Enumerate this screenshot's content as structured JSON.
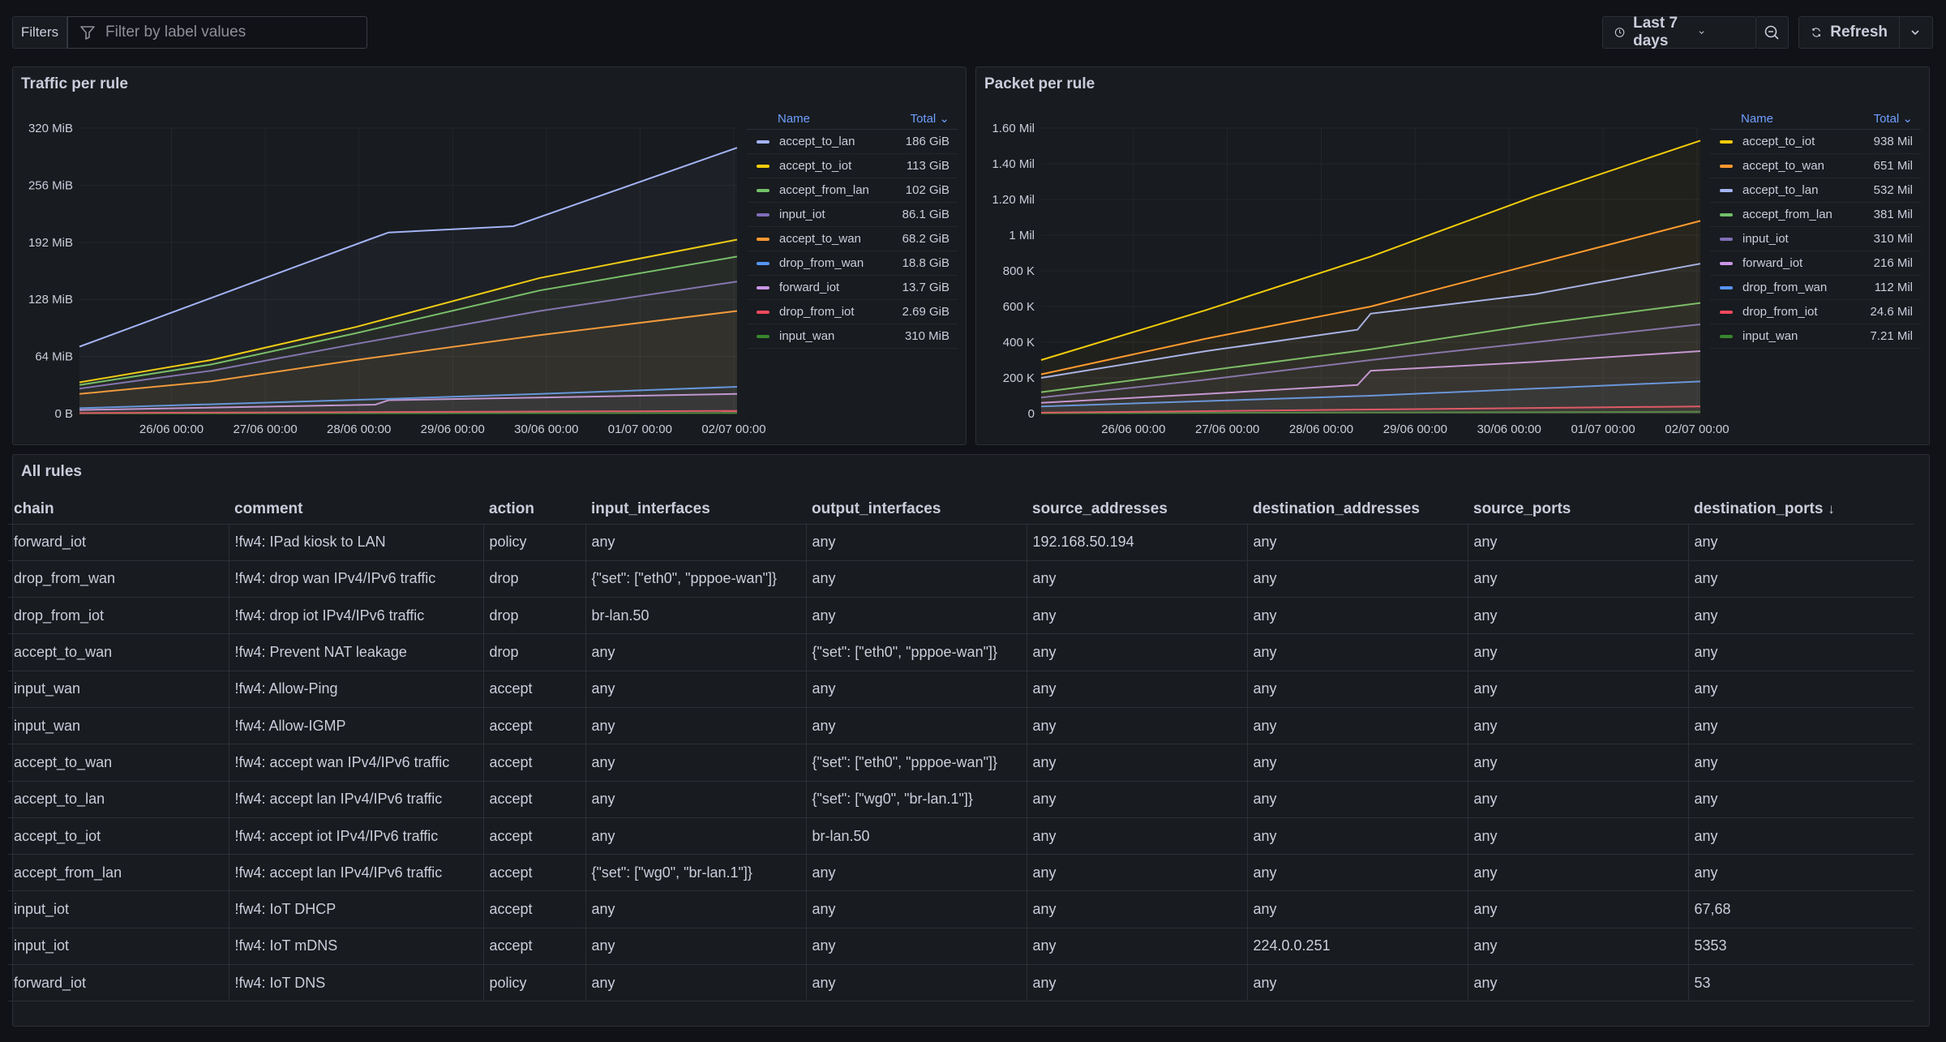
{
  "toolbar": {
    "filters_label": "Filters",
    "filter_placeholder": "Filter by label values",
    "time_range": "Last 7 days",
    "refresh_label": "Refresh"
  },
  "panels": {
    "traffic_title": "Traffic per rule",
    "packet_title": "Packet per rule",
    "table_title": "All rules"
  },
  "chart_data": [
    {
      "type": "line",
      "title": "Traffic per rule",
      "x": [
        "26/06 00:00",
        "27/06 00:00",
        "28/06 00:00",
        "29/06 00:00",
        "30/06 00:00",
        "01/07 00:00",
        "02/07 00:00"
      ],
      "y_ticks": [
        "0 B",
        "64 MiB",
        "128 MiB",
        "192 MiB",
        "256 MiB",
        "320 MiB"
      ],
      "ylim": [
        0,
        320
      ],
      "grid": true,
      "legend_placement": "right",
      "legend_header": {
        "name": "Name",
        "total": "Total"
      },
      "series": [
        {
          "name": "accept_to_lan",
          "total": "186 GiB",
          "color": "#a3b3f5",
          "points": [
            [
              0,
              75
            ],
            [
              0.44,
              195
            ],
            [
              0.47,
              203
            ],
            [
              0.66,
              210
            ],
            [
              1,
              298
            ]
          ]
        },
        {
          "name": "accept_to_iot",
          "total": "113 GiB",
          "color": "#f2cc0c",
          "points": [
            [
              0,
              35
            ],
            [
              0.2,
              60
            ],
            [
              0.42,
              97
            ],
            [
              0.7,
              152
            ],
            [
              1,
              195
            ]
          ]
        },
        {
          "name": "accept_from_lan",
          "total": "102 GiB",
          "color": "#73bf69",
          "points": [
            [
              0,
              32
            ],
            [
              0.2,
              55
            ],
            [
              0.42,
              90
            ],
            [
              0.7,
              138
            ],
            [
              1,
              176
            ]
          ]
        },
        {
          "name": "input_iot",
          "total": "86.1 GiB",
          "color": "#806eb7",
          "points": [
            [
              0,
              28
            ],
            [
              0.2,
              48
            ],
            [
              0.42,
              78
            ],
            [
              0.7,
              115
            ],
            [
              1,
              148
            ]
          ]
        },
        {
          "name": "accept_to_wan",
          "total": "68.2 GiB",
          "color": "#ff9830",
          "points": [
            [
              0,
              22
            ],
            [
              0.2,
              36
            ],
            [
              0.42,
              60
            ],
            [
              0.7,
              88
            ],
            [
              1,
              115
            ]
          ]
        },
        {
          "name": "drop_from_wan",
          "total": "18.8 GiB",
          "color": "#5794f2",
          "points": [
            [
              0,
              6
            ],
            [
              0.45,
              16
            ],
            [
              0.7,
              22
            ],
            [
              1,
              30
            ]
          ]
        },
        {
          "name": "forward_iot",
          "total": "13.7 GiB",
          "color": "#ca95e5",
          "points": [
            [
              0,
              4
            ],
            [
              0.45,
              10
            ],
            [
              0.47,
              15
            ],
            [
              0.7,
              18
            ],
            [
              1,
              22
            ]
          ]
        },
        {
          "name": "drop_from_iot",
          "total": "2.69 GiB",
          "color": "#f2495c",
          "points": [
            [
              0,
              0.5
            ],
            [
              1,
              3
            ]
          ]
        },
        {
          "name": "input_wan",
          "total": "310 MiB",
          "color": "#37872d",
          "points": [
            [
              0,
              0.2
            ],
            [
              1,
              0.5
            ]
          ]
        }
      ]
    },
    {
      "type": "line",
      "title": "Packet per rule",
      "x": [
        "26/06 00:00",
        "27/06 00:00",
        "28/06 00:00",
        "29/06 00:00",
        "30/06 00:00",
        "01/07 00:00",
        "02/07 00:00"
      ],
      "y_ticks": [
        "0",
        "200 K",
        "400 K",
        "600 K",
        "800 K",
        "1 Mil",
        "1.20 Mil",
        "1.40 Mil",
        "1.60 Mil"
      ],
      "ylim": [
        0,
        1.6
      ],
      "grid": true,
      "legend_placement": "right",
      "legend_header": {
        "name": "Name",
        "total": "Total"
      },
      "series": [
        {
          "name": "accept_to_iot",
          "total": "938 Mil",
          "color": "#f2cc0c",
          "points": [
            [
              0,
              0.3
            ],
            [
              0.25,
              0.58
            ],
            [
              0.5,
              0.88
            ],
            [
              0.75,
              1.22
            ],
            [
              1,
              1.53
            ]
          ]
        },
        {
          "name": "accept_to_wan",
          "total": "651 Mil",
          "color": "#ff9830",
          "points": [
            [
              0,
              0.22
            ],
            [
              0.25,
              0.42
            ],
            [
              0.5,
              0.6
            ],
            [
              0.75,
              0.84
            ],
            [
              1,
              1.08
            ]
          ]
        },
        {
          "name": "accept_to_lan",
          "total": "532 Mil",
          "color": "#a3b3f5",
          "points": [
            [
              0,
              0.2
            ],
            [
              0.25,
              0.35
            ],
            [
              0.48,
              0.47
            ],
            [
              0.5,
              0.56
            ],
            [
              0.75,
              0.67
            ],
            [
              1,
              0.84
            ]
          ]
        },
        {
          "name": "accept_from_lan",
          "total": "381 Mil",
          "color": "#73bf69",
          "points": [
            [
              0,
              0.12
            ],
            [
              0.25,
              0.24
            ],
            [
              0.5,
              0.36
            ],
            [
              0.75,
              0.5
            ],
            [
              1,
              0.62
            ]
          ]
        },
        {
          "name": "input_iot",
          "total": "310 Mil",
          "color": "#806eb7",
          "points": [
            [
              0,
              0.09
            ],
            [
              0.25,
              0.19
            ],
            [
              0.5,
              0.3
            ],
            [
              0.75,
              0.4
            ],
            [
              1,
              0.5
            ]
          ]
        },
        {
          "name": "forward_iot",
          "total": "216 Mil",
          "color": "#ca95e5",
          "points": [
            [
              0,
              0.06
            ],
            [
              0.25,
              0.11
            ],
            [
              0.48,
              0.16
            ],
            [
              0.5,
              0.24
            ],
            [
              0.75,
              0.29
            ],
            [
              1,
              0.35
            ]
          ]
        },
        {
          "name": "drop_from_wan",
          "total": "112 Mil",
          "color": "#5794f2",
          "points": [
            [
              0,
              0.04
            ],
            [
              0.5,
              0.1
            ],
            [
              1,
              0.18
            ]
          ]
        },
        {
          "name": "drop_from_iot",
          "total": "24.6 Mil",
          "color": "#f2495c",
          "points": [
            [
              0,
              0.005
            ],
            [
              1,
              0.04
            ]
          ]
        },
        {
          "name": "input_wan",
          "total": "7.21 Mil",
          "color": "#37872d",
          "points": [
            [
              0,
              0.002
            ],
            [
              1,
              0.01
            ]
          ]
        }
      ]
    }
  ],
  "table": {
    "columns": [
      {
        "label": "chain",
        "sort": ""
      },
      {
        "label": "comment",
        "sort": ""
      },
      {
        "label": "action",
        "sort": ""
      },
      {
        "label": "input_interfaces",
        "sort": ""
      },
      {
        "label": "output_interfaces",
        "sort": ""
      },
      {
        "label": "source_addresses",
        "sort": ""
      },
      {
        "label": "destination_addresses",
        "sort": ""
      },
      {
        "label": "source_ports",
        "sort": ""
      },
      {
        "label": "destination_ports",
        "sort": "↓"
      }
    ],
    "rows": [
      [
        "forward_iot",
        "!fw4: IPad kiosk to LAN",
        "policy",
        "any",
        "any",
        "192.168.50.194",
        "any",
        "any",
        "any"
      ],
      [
        "drop_from_wan",
        "!fw4: drop wan IPv4/IPv6 traffic",
        "drop",
        "{\"set\": [\"eth0\", \"pppoe-wan\"]}",
        "any",
        "any",
        "any",
        "any",
        "any"
      ],
      [
        "drop_from_iot",
        "!fw4: drop iot IPv4/IPv6 traffic",
        "drop",
        "br-lan.50",
        "any",
        "any",
        "any",
        "any",
        "any"
      ],
      [
        "accept_to_wan",
        "!fw4: Prevent NAT leakage",
        "drop",
        "any",
        "{\"set\": [\"eth0\", \"pppoe-wan\"]}",
        "any",
        "any",
        "any",
        "any"
      ],
      [
        "input_wan",
        "!fw4: Allow-Ping",
        "accept",
        "any",
        "any",
        "any",
        "any",
        "any",
        "any"
      ],
      [
        "input_wan",
        "!fw4: Allow-IGMP",
        "accept",
        "any",
        "any",
        "any",
        "any",
        "any",
        "any"
      ],
      [
        "accept_to_wan",
        "!fw4: accept wan IPv4/IPv6 traffic",
        "accept",
        "any",
        "{\"set\": [\"eth0\", \"pppoe-wan\"]}",
        "any",
        "any",
        "any",
        "any"
      ],
      [
        "accept_to_lan",
        "!fw4: accept lan IPv4/IPv6 traffic",
        "accept",
        "any",
        "{\"set\": [\"wg0\", \"br-lan.1\"]}",
        "any",
        "any",
        "any",
        "any"
      ],
      [
        "accept_to_iot",
        "!fw4: accept iot IPv4/IPv6 traffic",
        "accept",
        "any",
        "br-lan.50",
        "any",
        "any",
        "any",
        "any"
      ],
      [
        "accept_from_lan",
        "!fw4: accept lan IPv4/IPv6 traffic",
        "accept",
        "{\"set\": [\"wg0\", \"br-lan.1\"]}",
        "any",
        "any",
        "any",
        "any",
        "any"
      ],
      [
        "input_iot",
        "!fw4: IoT DHCP",
        "accept",
        "any",
        "any",
        "any",
        "any",
        "any",
        "67,68"
      ],
      [
        "input_iot",
        "!fw4: IoT mDNS",
        "accept",
        "any",
        "any",
        "any",
        "224.0.0.251",
        "any",
        "5353"
      ],
      [
        "forward_iot",
        "!fw4: IoT DNS",
        "policy",
        "any",
        "any",
        "any",
        "any",
        "any",
        "53"
      ]
    ]
  }
}
